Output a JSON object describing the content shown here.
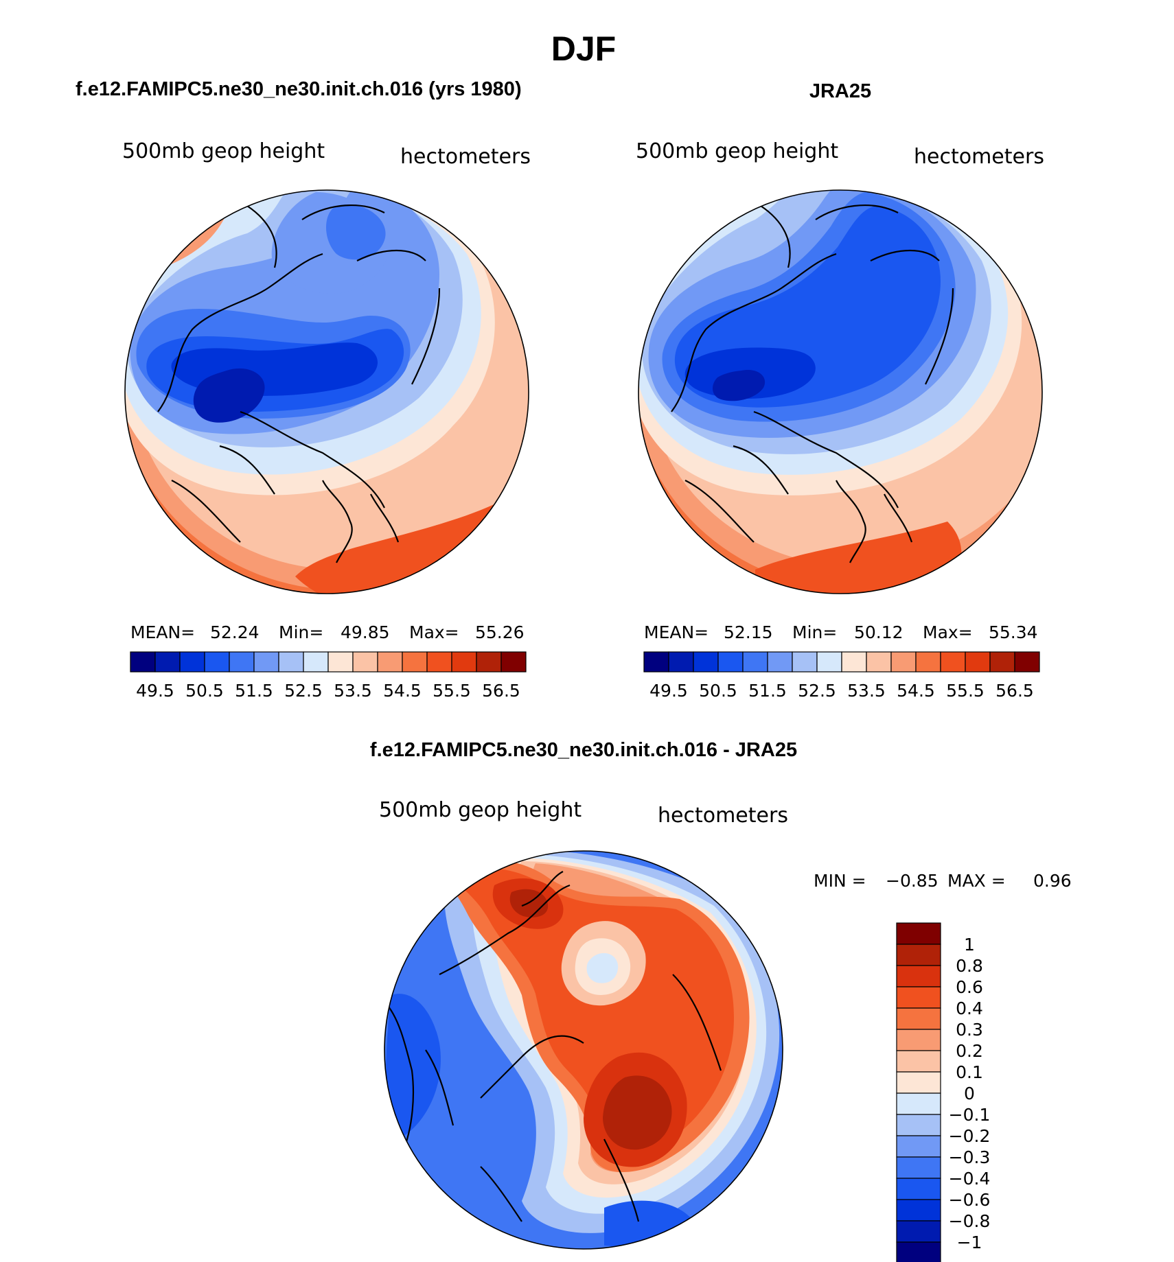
{
  "chart_data": {
    "type": "contour-map",
    "title": "DJF",
    "panels": [
      {
        "id": "model",
        "title": "f.e12.FAMIPC5.ne30_ne30.init.ch.016 (yrs 1980)",
        "field_label": "500mb  geop  height",
        "units_label": "hectometers",
        "stats": {
          "mean_label": "MEAN=",
          "mean": "52.24",
          "min_label": "Min=",
          "min": "49.85",
          "max_label": "Max=",
          "max": "55.26"
        },
        "colorbar_ticks": [
          "49.5",
          "50.5",
          "51.5",
          "52.5",
          "53.5",
          "54.5",
          "55.5",
          "56.5"
        ],
        "projection": "north-polar-stereographic"
      },
      {
        "id": "obs",
        "title": "JRA25",
        "field_label": "500mb  geop  height",
        "units_label": "hectometers",
        "stats": {
          "mean_label": "MEAN=",
          "mean": "52.15",
          "min_label": "Min=",
          "min": "50.12",
          "max_label": "Max=",
          "max": "55.34"
        },
        "colorbar_ticks": [
          "49.5",
          "50.5",
          "51.5",
          "52.5",
          "53.5",
          "54.5",
          "55.5",
          "56.5"
        ],
        "projection": "north-polar-stereographic"
      },
      {
        "id": "diff",
        "title": "f.e12.FAMIPC5.ne30_ne30.init.ch.016 - JRA25",
        "field_label": "500mb  geop  height",
        "units_label": "hectometers",
        "stats": {
          "min_label": "MIN =",
          "min": "−0.85",
          "max_label": "MAX =",
          "max": "0.96"
        },
        "colorbar_ticks": [
          "1",
          "0.8",
          "0.6",
          "0.4",
          "0.3",
          "0.2",
          "0.1",
          "0",
          "−0.1",
          "−0.2",
          "−0.3",
          "−0.4",
          "−0.6",
          "−0.8",
          "−1"
        ],
        "projection": "north-polar-stereographic"
      }
    ],
    "main_palette": [
      "#00007f",
      "#001bb0",
      "#0033d9",
      "#1a57f0",
      "#3f76f4",
      "#7199f5",
      "#a6c1f6",
      "#d6e8fb",
      "#fde6d6",
      "#fbc3a6",
      "#f89b73",
      "#f5733f",
      "#f0511f",
      "#e13a0f",
      "#b02208",
      "#800000"
    ],
    "diff_palette": [
      "#7f0000",
      "#b02208",
      "#d9320e",
      "#f0511f",
      "#f5733f",
      "#f89b73",
      "#fbc3a6",
      "#fde6d6",
      "#d6e8fb",
      "#a6c1f6",
      "#7199f5",
      "#3f76f4",
      "#1a57f0",
      "#0033d9",
      "#001bb0",
      "#00007f"
    ]
  }
}
